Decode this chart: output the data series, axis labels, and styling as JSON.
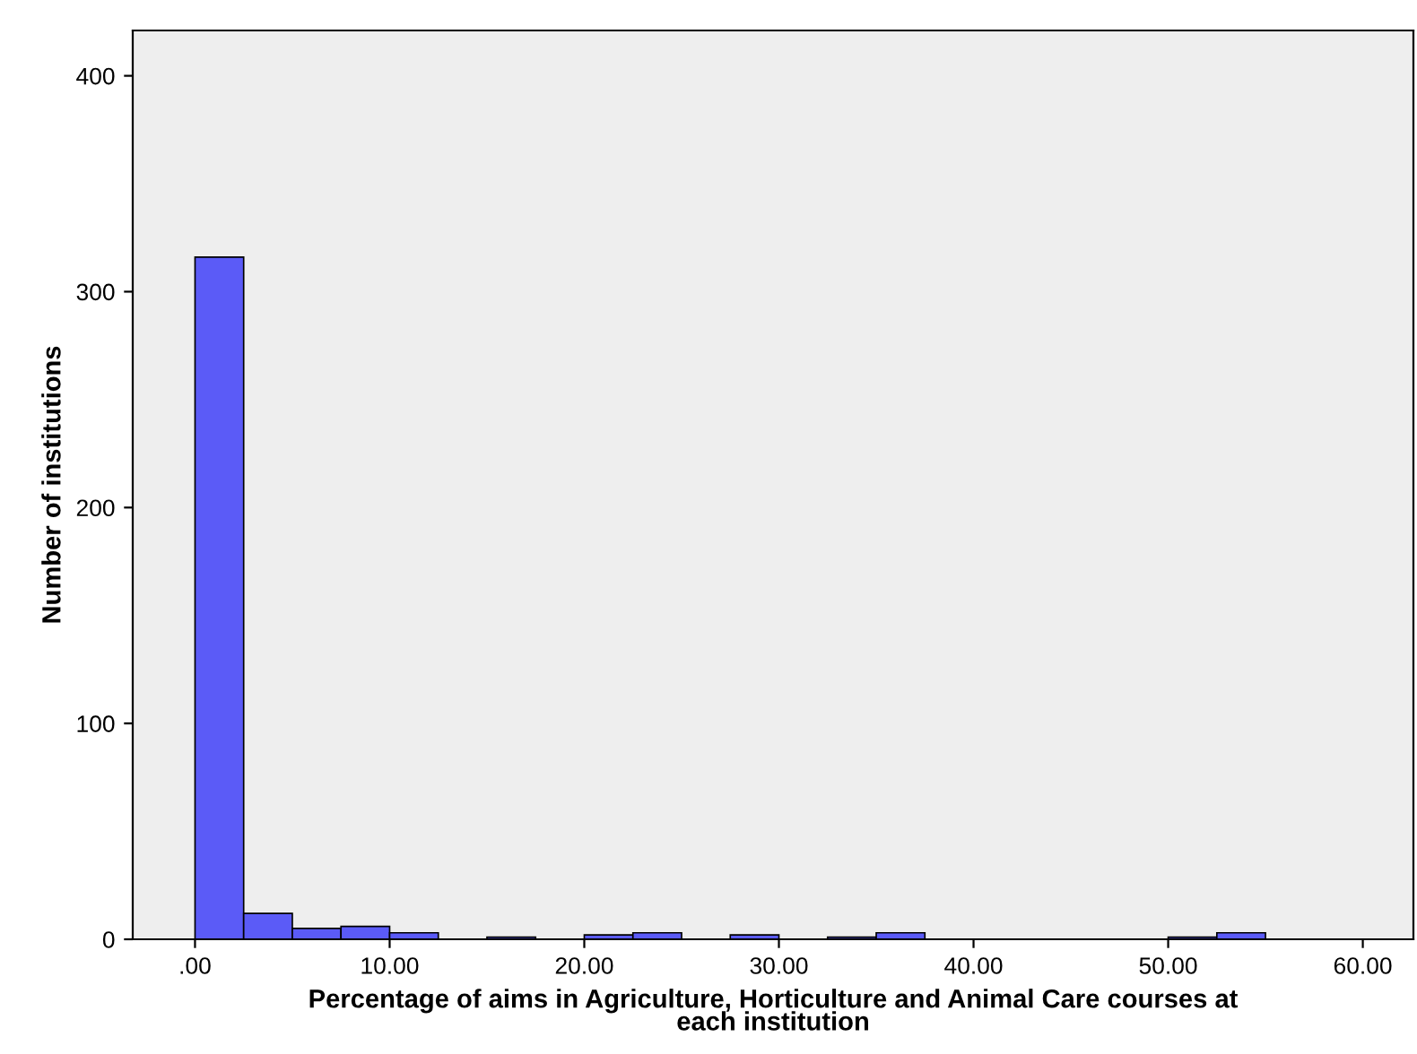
{
  "chart_data": {
    "type": "histogram",
    "xlabel": "Percentage of aims in Agriculture, Horticulture and Animal Care courses at\neach institution",
    "ylabel": "Number of institutions",
    "bins": [
      0,
      2.5,
      5,
      7.5,
      10,
      12.5,
      15,
      17.5,
      20,
      22.5,
      25,
      27.5,
      30,
      32.5,
      35,
      37.5,
      40,
      42.5,
      45,
      47.5,
      50,
      52.5,
      55
    ],
    "values": [
      316,
      12,
      5,
      6,
      3,
      0,
      1,
      0,
      2,
      3,
      0,
      2,
      0,
      1,
      3,
      0,
      0,
      0,
      0,
      0,
      1,
      3
    ],
    "color": "#5b5bf7",
    "xlim": [
      -3.2,
      62.6
    ],
    "ylim": [
      0,
      421
    ],
    "xticks": [
      {
        "value": 0,
        "label": ".00"
      },
      {
        "value": 10,
        "label": "10.00"
      },
      {
        "value": 20,
        "label": "20.00"
      },
      {
        "value": 30,
        "label": "30.00"
      },
      {
        "value": 40,
        "label": "40.00"
      },
      {
        "value": 50,
        "label": "50.00"
      },
      {
        "value": 60,
        "label": "60.00"
      }
    ],
    "yticks": [
      0,
      100,
      200,
      300,
      400
    ],
    "grid": false,
    "legend": false
  }
}
